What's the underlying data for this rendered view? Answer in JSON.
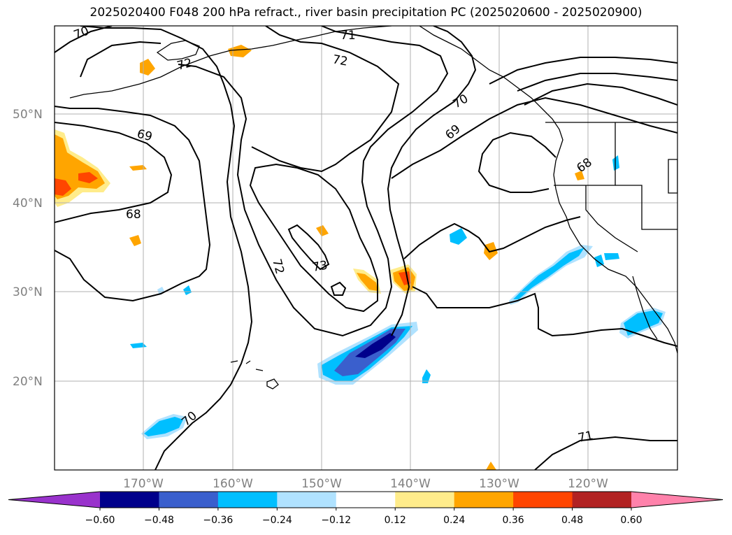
{
  "title": "2025020400 F048 200 hPa refract., river basin precipitation PC (2025020600 - 2025020900)",
  "map": {
    "lat_labels": [
      "50°N",
      "40°N",
      "30°N",
      "20°N"
    ],
    "lon_labels": [
      "170°W",
      "160°W",
      "150°W",
      "140°W",
      "130°W",
      "120°W"
    ],
    "contour_labels": [
      "70",
      "71",
      "72",
      "72",
      "69",
      "70",
      "69",
      "68",
      "68",
      "72",
      "73",
      "70",
      "71"
    ]
  },
  "colorbar": {
    "ticks": [
      "−0.60",
      "−0.48",
      "−0.36",
      "−0.24",
      "−0.12",
      "0.12",
      "0.24",
      "0.36",
      "0.48",
      "0.60"
    ],
    "colors": [
      "#9932cc",
      "#00008b",
      "#3a5fcd",
      "#00bfff",
      "#b0e2ff",
      "#ffffff",
      "#ffec8b",
      "#ffa500",
      "#ff4500",
      "#b22222",
      "#ff82ab"
    ]
  },
  "colors": {
    "contour": "#000000",
    "grid": "#b0b0b0",
    "axis_label": "#808080"
  }
}
